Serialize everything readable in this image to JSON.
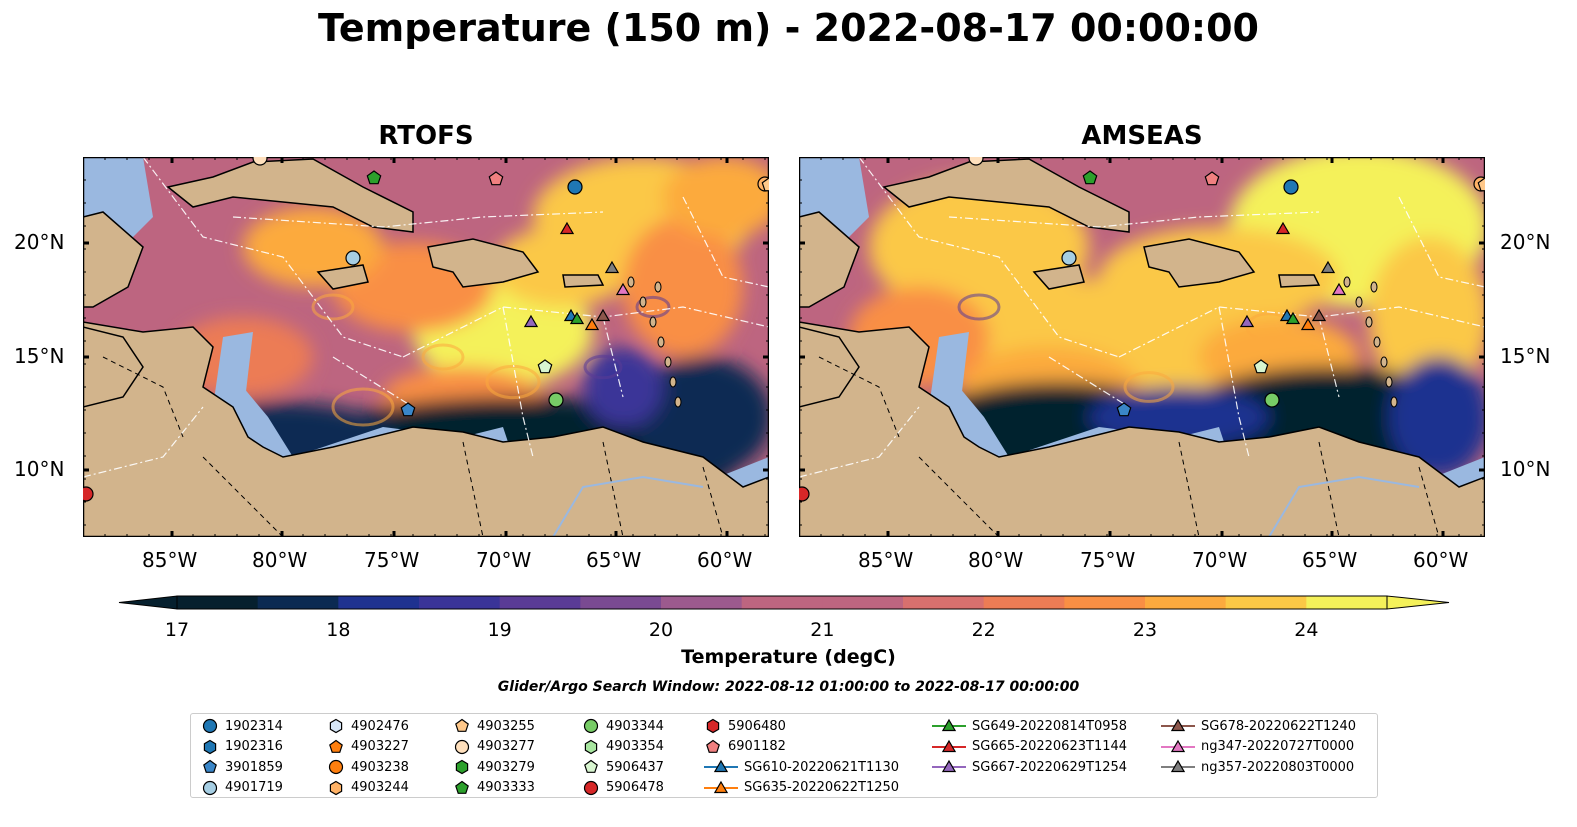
{
  "title": "Temperature (150 m) - 2022-08-17 00:00:00",
  "panels": [
    {
      "title": "RTOFS"
    },
    {
      "title": "AMSEAS"
    }
  ],
  "axes": {
    "lon_ticks": [
      "85°W",
      "80°W",
      "75°W",
      "70°W",
      "65°W",
      "60°W"
    ],
    "lat_ticks": [
      "20°N",
      "15°N",
      "10°N"
    ]
  },
  "colorbar": {
    "label": "Temperature (degC)",
    "ticks": [
      "17",
      "18",
      "19",
      "20",
      "21",
      "22",
      "23",
      "24"
    ],
    "min": 17,
    "max": 24.5,
    "step": 0.5,
    "extend": "both",
    "colormap": "thermal"
  },
  "search_window": "Glider/Argo Search Window: 2022-08-12 01:00:00 to 2022-08-17 00:00:00",
  "colors": {
    "land": "#d2b48c",
    "shallow_water": "#9ab8e0",
    "warm": "#f4f15a",
    "cold": "#05202e"
  },
  "legend": {
    "columns": [
      [
        {
          "label": "1902314",
          "marker": "circle",
          "color": "#1f77b4"
        },
        {
          "label": "1902316",
          "marker": "hexagon",
          "color": "#1f77b4"
        },
        {
          "label": "3901859",
          "marker": "pentagon",
          "color": "#3a86c8"
        },
        {
          "label": "4901719",
          "marker": "circle",
          "color": "#a6cee3"
        }
      ],
      [
        {
          "label": "4902476",
          "marker": "hexagon",
          "color": "#d6e6f7"
        },
        {
          "label": "4903227",
          "marker": "pentagon",
          "color": "#ff7f0e"
        },
        {
          "label": "4903238",
          "marker": "circle",
          "color": "#ff7f0e"
        },
        {
          "label": "4903244",
          "marker": "hexagon",
          "color": "#ffb266"
        }
      ],
      [
        {
          "label": "4903255",
          "marker": "pentagon",
          "color": "#ffc88a"
        },
        {
          "label": "4903277",
          "marker": "circle",
          "color": "#ffe0bd"
        },
        {
          "label": "4903279",
          "marker": "hexagon",
          "color": "#2ca02c"
        },
        {
          "label": "4903333",
          "marker": "pentagon",
          "color": "#2ca02c"
        }
      ],
      [
        {
          "label": "4903344",
          "marker": "circle",
          "color": "#77cc66"
        },
        {
          "label": "4903354",
          "marker": "hexagon",
          "color": "#a8e6a0"
        },
        {
          "label": "5906437",
          "marker": "pentagon",
          "color": "#d8f5d0"
        },
        {
          "label": "5906478",
          "marker": "circle",
          "color": "#d62728"
        }
      ],
      [
        {
          "label": "5906480",
          "marker": "hexagon",
          "color": "#d62728"
        },
        {
          "label": "6901182",
          "marker": "pentagon",
          "color": "#f08080"
        },
        {
          "label": "SG610-20220621T1130",
          "marker": "triangle-line",
          "color": "#1f77b4"
        },
        {
          "label": "SG635-20220622T1250",
          "marker": "triangle-line",
          "color": "#ff7f0e"
        }
      ],
      [
        {
          "label": "SG649-20220814T0958",
          "marker": "triangle-line",
          "color": "#2ca02c"
        },
        {
          "label": "SG665-20220623T1144",
          "marker": "triangle-line",
          "color": "#d62728"
        },
        {
          "label": "SG667-20220629T1254",
          "marker": "triangle-line",
          "color": "#9467bd"
        }
      ],
      [
        {
          "label": "SG678-20220622T1240",
          "marker": "triangle-line",
          "color": "#8c564b"
        },
        {
          "label": "ng347-20220727T0000",
          "marker": "triangle-line",
          "color": "#e377c2"
        },
        {
          "label": "ng357-20220803T0000",
          "marker": "triangle-line",
          "color": "#7f7f7f"
        }
      ]
    ]
  }
}
